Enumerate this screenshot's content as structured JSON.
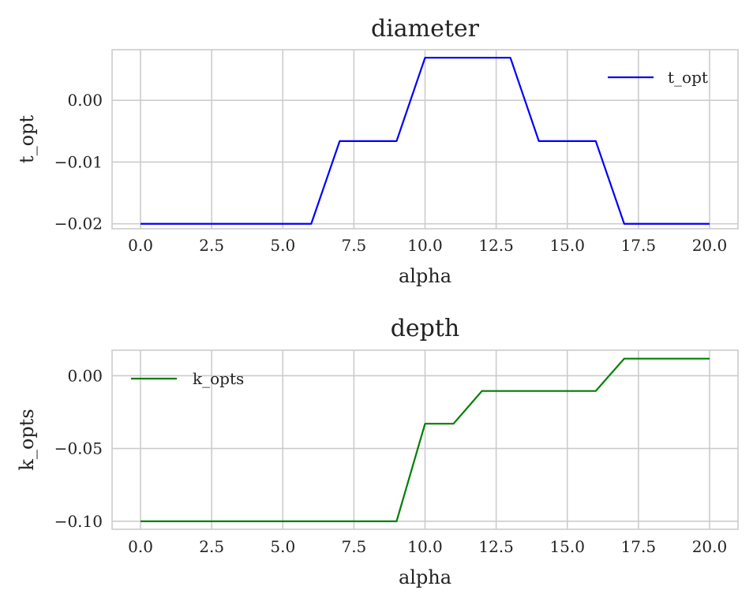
{
  "chart_data": [
    {
      "type": "line",
      "title": "diameter",
      "xlabel": "alpha",
      "ylabel": "t_opt",
      "xlim": [
        -1,
        21
      ],
      "ylim": [
        -0.0208,
        0.0082
      ],
      "xticks": [
        0,
        2.5,
        5,
        7.5,
        10,
        12.5,
        15,
        17.5,
        20
      ],
      "xtick_labels": [
        "0.0",
        "2.5",
        "5.0",
        "7.5",
        "10.0",
        "12.5",
        "15.0",
        "17.5",
        "20.0"
      ],
      "yticks": [
        0,
        -0.01,
        -0.02
      ],
      "ytick_labels": [
        "0.00",
        "−0.01",
        "−0.02"
      ],
      "grid": true,
      "legend_position": "top-right",
      "x": [
        0,
        1,
        2,
        3,
        4,
        5,
        6,
        7,
        8,
        9,
        10,
        11,
        12,
        13,
        14,
        15,
        16,
        17,
        18,
        19,
        20
      ],
      "series": [
        {
          "name": "t_opt",
          "color": "#0000ff",
          "values": [
            -0.02,
            -0.02,
            -0.02,
            -0.02,
            -0.02,
            -0.02,
            -0.02,
            -0.0066,
            -0.0066,
            -0.0066,
            0.0069,
            0.0069,
            0.0069,
            0.0069,
            -0.0066,
            -0.0066,
            -0.0066,
            -0.02,
            -0.02,
            -0.02,
            -0.02
          ]
        }
      ]
    },
    {
      "type": "line",
      "title": "depth",
      "xlabel": "alpha",
      "ylabel": "k_opts",
      "xlim": [
        -1,
        21
      ],
      "ylim": [
        -0.1055,
        0.0175
      ],
      "xticks": [
        0,
        2.5,
        5,
        7.5,
        10,
        12.5,
        15,
        17.5,
        20
      ],
      "xtick_labels": [
        "0.0",
        "2.5",
        "5.0",
        "7.5",
        "10.0",
        "12.5",
        "15.0",
        "17.5",
        "20.0"
      ],
      "yticks": [
        0,
        -0.05,
        -0.1
      ],
      "ytick_labels": [
        "0.00",
        "−0.05",
        "−0.10"
      ],
      "grid": true,
      "legend_position": "top-left",
      "x": [
        0,
        1,
        2,
        3,
        4,
        5,
        6,
        7,
        8,
        9,
        10,
        11,
        12,
        13,
        14,
        15,
        16,
        17,
        18,
        19,
        20
      ],
      "series": [
        {
          "name": "k_opts",
          "color": "#008000",
          "values": [
            -0.1,
            -0.1,
            -0.1,
            -0.1,
            -0.1,
            -0.1,
            -0.1,
            -0.1,
            -0.1,
            -0.1,
            -0.033,
            -0.033,
            -0.0105,
            -0.0105,
            -0.0105,
            -0.0105,
            -0.0105,
            0.0117,
            0.0117,
            0.0117,
            0.0117
          ]
        }
      ]
    }
  ]
}
